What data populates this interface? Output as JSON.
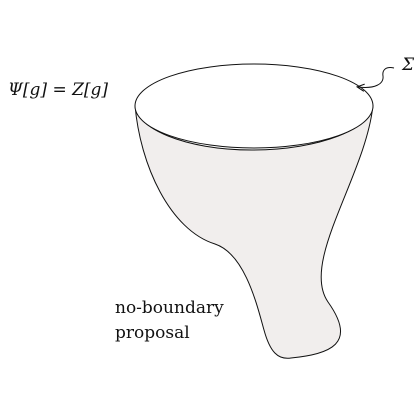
{
  "labels": {
    "wavefunction": "Ψ[g] = Z[g]",
    "boundary": "Σ",
    "proposal_line1": "no-boundary",
    "proposal_line2": "proposal"
  },
  "colors": {
    "surface_fill": "#f1eeed",
    "cap_fill": "#ffffff",
    "stroke": "#111111"
  }
}
